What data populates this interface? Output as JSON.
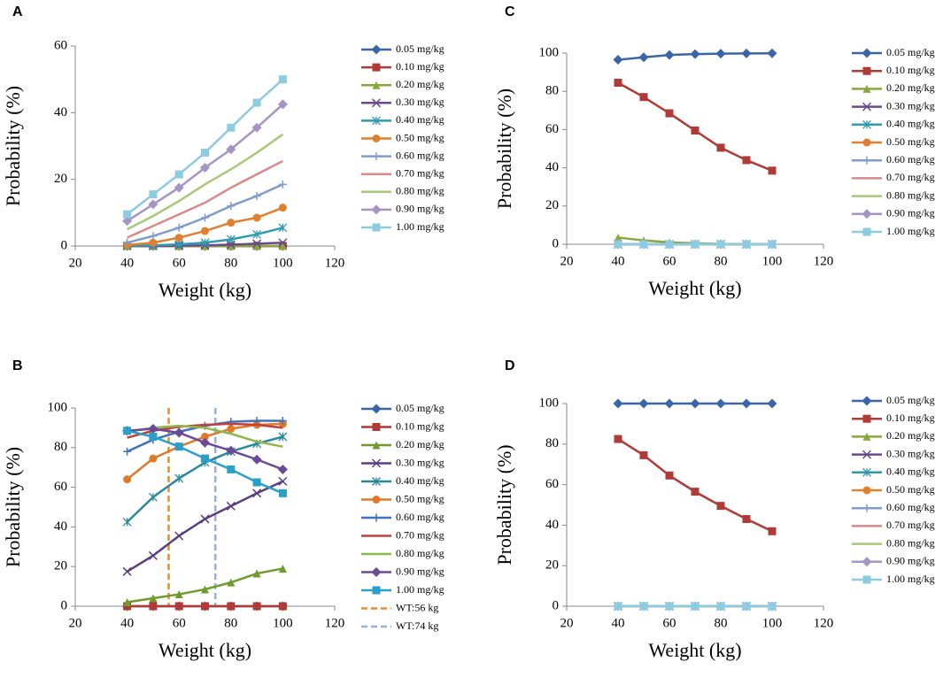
{
  "chart_data": [
    {
      "type": "line",
      "panel": "A",
      "x": [
        40,
        50,
        60,
        70,
        80,
        90,
        100
      ],
      "xlim": [
        20,
        120
      ],
      "xticks": [
        20,
        40,
        60,
        80,
        100,
        120
      ],
      "ylim": [
        0,
        60
      ],
      "yticks": [
        0,
        20,
        40,
        60
      ],
      "xlabel": "Weight (kg)",
      "ylabel": "Probability (%)",
      "series": [
        {
          "name": "0.05 mg/kg",
          "color": "#3a66a8",
          "marker": "diamond",
          "values": [
            0,
            0,
            0,
            0,
            0,
            0,
            0
          ]
        },
        {
          "name": "0.10 mg/kg",
          "color": "#b03a36",
          "marker": "square",
          "values": [
            0,
            0,
            0,
            0,
            0,
            0,
            0
          ]
        },
        {
          "name": "0.20 mg/kg",
          "color": "#88a83a",
          "marker": "triangle",
          "values": [
            0,
            0,
            0,
            0,
            0,
            0,
            0
          ]
        },
        {
          "name": "0.30 mg/kg",
          "color": "#6b4a8c",
          "marker": "x",
          "values": [
            0,
            0,
            0.1,
            0.2,
            0.4,
            0.7,
            1.0
          ]
        },
        {
          "name": "0.40 mg/kg",
          "color": "#2e9bb0",
          "marker": "asterisk",
          "values": [
            0.1,
            0.2,
            0.5,
            1.0,
            2.0,
            3.5,
            5.5
          ]
        },
        {
          "name": "0.50 mg/kg",
          "color": "#e0802e",
          "marker": "circle",
          "values": [
            0.3,
            1.0,
            2.5,
            4.5,
            7,
            8.5,
            11.5
          ]
        },
        {
          "name": "0.60 mg/kg",
          "color": "#7f9ccc",
          "marker": "plus",
          "values": [
            1,
            3,
            5.5,
            8.5,
            12,
            15,
            18.5
          ]
        },
        {
          "name": "0.70 mg/kg",
          "color": "#d98a86",
          "marker": "none",
          "values": [
            2.5,
            6,
            9.5,
            13,
            17.5,
            21.5,
            25.5
          ]
        },
        {
          "name": "0.80 mg/kg",
          "color": "#a9c77a",
          "marker": "none",
          "values": [
            5,
            9,
            13.5,
            18.5,
            23,
            28,
            33.5
          ]
        },
        {
          "name": "0.90 mg/kg",
          "color": "#a694c2",
          "marker": "diamond",
          "values": [
            7.5,
            12.5,
            17.5,
            23.5,
            29,
            35.5,
            42.5
          ]
        },
        {
          "name": "1.00 mg/kg",
          "color": "#8ccbe0",
          "marker": "square",
          "values": [
            9.5,
            15.5,
            21.5,
            28,
            35.5,
            43,
            50
          ]
        }
      ]
    },
    {
      "type": "line",
      "panel": "B",
      "x": [
        40,
        50,
        60,
        70,
        80,
        90,
        100
      ],
      "xlim": [
        20,
        120
      ],
      "xticks": [
        20,
        40,
        60,
        80,
        100,
        120
      ],
      "ylim": [
        0,
        100
      ],
      "yticks": [
        0,
        20,
        40,
        60,
        80,
        100
      ],
      "xlabel": "Weight (kg)",
      "ylabel": "Probability (%)",
      "series": [
        {
          "name": "0.05 mg/kg",
          "color": "#3a66a8",
          "marker": "diamond",
          "values": [
            0,
            0,
            0,
            0,
            0,
            0,
            0
          ]
        },
        {
          "name": "0.10 mg/kg",
          "color": "#b03a36",
          "marker": "square",
          "values": [
            0,
            0,
            0,
            0,
            0,
            0,
            0
          ]
        },
        {
          "name": "0.20 mg/kg",
          "color": "#6f9a2e",
          "marker": "triangle",
          "values": [
            2,
            4,
            6,
            8.5,
            12,
            16.5,
            19
          ]
        },
        {
          "name": "0.30 mg/kg",
          "color": "#5a3e80",
          "marker": "x",
          "values": [
            17.5,
            25.5,
            35.5,
            44,
            50.5,
            57,
            63
          ]
        },
        {
          "name": "0.40 mg/kg",
          "color": "#2a8a9a",
          "marker": "asterisk",
          "values": [
            42.5,
            55,
            64.5,
            72.5,
            78,
            82,
            85.5
          ]
        },
        {
          "name": "0.50 mg/kg",
          "color": "#e07a2a",
          "marker": "circle",
          "values": [
            64,
            74.5,
            80.5,
            85.5,
            89.5,
            91.5,
            92
          ]
        },
        {
          "name": "0.60 mg/kg",
          "color": "#3f72b8",
          "marker": "plus",
          "values": [
            78,
            84,
            88,
            91,
            93,
            93.5,
            93.5
          ]
        },
        {
          "name": "0.70 mg/kg",
          "color": "#c0413c",
          "marker": "none",
          "values": [
            85,
            88.5,
            90.5,
            91.5,
            92,
            91.5,
            90
          ]
        },
        {
          "name": "0.80 mg/kg",
          "color": "#8fb84a",
          "marker": "none",
          "values": [
            88,
            90,
            91,
            90,
            87,
            83,
            80.5
          ]
        },
        {
          "name": "0.90 mg/kg",
          "color": "#6a4a98",
          "marker": "diamond",
          "values": [
            88.5,
            89.5,
            87.5,
            82.5,
            78.5,
            74,
            69
          ]
        },
        {
          "name": "1.00 mg/kg",
          "color": "#2aa0c8",
          "marker": "square",
          "values": [
            88.5,
            85.5,
            80.5,
            74.5,
            69,
            62.5,
            57
          ]
        }
      ],
      "vlines": [
        {
          "name": "WT:56 kg",
          "x": 56,
          "color": "#f08a2a"
        },
        {
          "name": "WT:74 kg",
          "x": 74,
          "color": "#98b0d8"
        }
      ]
    },
    {
      "type": "line",
      "panel": "C",
      "x": [
        40,
        50,
        60,
        70,
        80,
        90,
        100
      ],
      "xlim": [
        20,
        120
      ],
      "xticks": [
        20,
        40,
        60,
        80,
        100,
        120
      ],
      "ylim": [
        0,
        100
      ],
      "yticks": [
        0,
        20,
        40,
        60,
        80,
        100
      ],
      "xlabel": "Weight (kg)",
      "ylabel": "Probability (%)",
      "series": [
        {
          "name": "0.05 mg/kg",
          "color": "#3a66a8",
          "marker": "diamond",
          "values": [
            96.5,
            97.8,
            99,
            99.5,
            99.7,
            99.8,
            99.9
          ]
        },
        {
          "name": "0.10 mg/kg",
          "color": "#b03a36",
          "marker": "square",
          "values": [
            84.5,
            77,
            68.5,
            59.5,
            50.5,
            44,
            38.5
          ]
        },
        {
          "name": "0.20 mg/kg",
          "color": "#88a83a",
          "marker": "triangle",
          "values": [
            3.5,
            2,
            1,
            0.5,
            0.2,
            0.1,
            0
          ]
        },
        {
          "name": "0.30 mg/kg",
          "color": "#6b4a8c",
          "marker": "x",
          "values": [
            0,
            0,
            0,
            0,
            0,
            0,
            0
          ]
        },
        {
          "name": "0.40 mg/kg",
          "color": "#2e9bb0",
          "marker": "asterisk",
          "values": [
            0,
            0,
            0,
            0,
            0,
            0,
            0
          ]
        },
        {
          "name": "0.50 mg/kg",
          "color": "#e0802e",
          "marker": "circle",
          "values": [
            0,
            0,
            0,
            0,
            0,
            0,
            0
          ]
        },
        {
          "name": "0.60 mg/kg",
          "color": "#7f9ccc",
          "marker": "plus",
          "values": [
            0,
            0,
            0,
            0,
            0,
            0,
            0
          ]
        },
        {
          "name": "0.70 mg/kg",
          "color": "#d98a86",
          "marker": "none",
          "values": [
            0,
            0,
            0,
            0,
            0,
            0,
            0
          ]
        },
        {
          "name": "0.80 mg/kg",
          "color": "#a9c77a",
          "marker": "none",
          "values": [
            0,
            0,
            0,
            0,
            0,
            0,
            0
          ]
        },
        {
          "name": "0.90 mg/kg",
          "color": "#a694c2",
          "marker": "diamond",
          "values": [
            0,
            0,
            0,
            0,
            0,
            0,
            0
          ]
        },
        {
          "name": "1.00 mg/kg",
          "color": "#8ccbe0",
          "marker": "square",
          "values": [
            0,
            0,
            0,
            0,
            0,
            0,
            0
          ]
        }
      ]
    },
    {
      "type": "line",
      "panel": "D",
      "x": [
        40,
        50,
        60,
        70,
        80,
        90,
        100
      ],
      "xlim": [
        20,
        120
      ],
      "xticks": [
        20,
        40,
        60,
        80,
        100,
        120
      ],
      "ylim": [
        0,
        100
      ],
      "yticks": [
        0,
        20,
        40,
        60,
        80,
        100
      ],
      "xlabel": "Weight (kg)",
      "ylabel": "Probability (%)",
      "series": [
        {
          "name": "0.05 mg/kg",
          "color": "#3a66a8",
          "marker": "diamond",
          "values": [
            100,
            100,
            100,
            100,
            100,
            100,
            100
          ]
        },
        {
          "name": "0.10 mg/kg",
          "color": "#b03a36",
          "marker": "square",
          "values": [
            82.5,
            74.5,
            64.5,
            56.5,
            49.5,
            43,
            37
          ]
        },
        {
          "name": "0.20 mg/kg",
          "color": "#88a83a",
          "marker": "triangle",
          "values": [
            0,
            0,
            0,
            0,
            0,
            0,
            0
          ]
        },
        {
          "name": "0.30 mg/kg",
          "color": "#6b4a8c",
          "marker": "x",
          "values": [
            0,
            0,
            0,
            0,
            0,
            0,
            0
          ]
        },
        {
          "name": "0.40 mg/kg",
          "color": "#2e9bb0",
          "marker": "asterisk",
          "values": [
            0,
            0,
            0,
            0,
            0,
            0,
            0
          ]
        },
        {
          "name": "0.50 mg/kg",
          "color": "#e0802e",
          "marker": "circle",
          "values": [
            0,
            0,
            0,
            0,
            0,
            0,
            0
          ]
        },
        {
          "name": "0.60 mg/kg",
          "color": "#7f9ccc",
          "marker": "plus",
          "values": [
            0,
            0,
            0,
            0,
            0,
            0,
            0
          ]
        },
        {
          "name": "0.70 mg/kg",
          "color": "#d98a86",
          "marker": "none",
          "values": [
            0,
            0,
            0,
            0,
            0,
            0,
            0
          ]
        },
        {
          "name": "0.80 mg/kg",
          "color": "#a9c77a",
          "marker": "none",
          "values": [
            0,
            0,
            0,
            0,
            0,
            0,
            0
          ]
        },
        {
          "name": "0.90 mg/kg",
          "color": "#a694c2",
          "marker": "diamond",
          "values": [
            0,
            0,
            0,
            0,
            0,
            0,
            0
          ]
        },
        {
          "name": "1.00 mg/kg",
          "color": "#8ccbe0",
          "marker": "square",
          "values": [
            0,
            0,
            0,
            0,
            0,
            0,
            0
          ]
        }
      ]
    }
  ]
}
